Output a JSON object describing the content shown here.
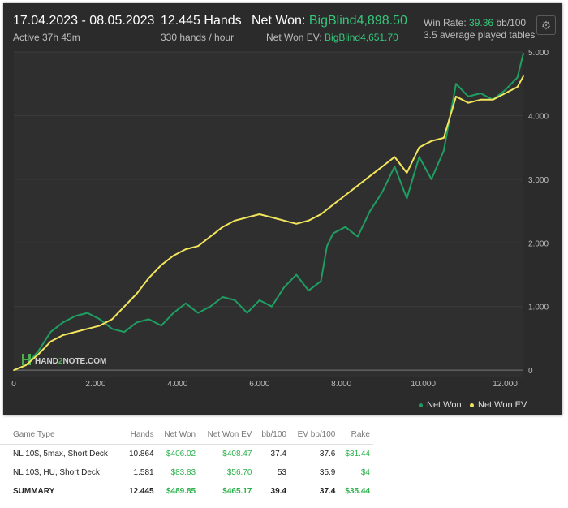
{
  "header": {
    "date_range": "17.04.2023 - 08.05.2023",
    "active": "Active 37h 45m",
    "hands": "12.445 Hands",
    "hands_rate": "330 hands / hour",
    "net_won_label": "Net Won:",
    "net_won_value": "BigBlind4,898.50",
    "net_won_ev_label": "Net Won  EV:",
    "net_won_ev_value": "BigBlind4,651.70",
    "win_rate_label": "Win Rate:",
    "win_rate_value": "39.36",
    "win_rate_unit": "bb/100",
    "avg_tables": "3.5 average played tables",
    "settings_icon": "gear-icon"
  },
  "watermark": {
    "prefix": "HAND",
    "mid": "2",
    "suffix": "NOTE.COM"
  },
  "legend": [
    {
      "label": "Net Won",
      "color": "#1f9e62"
    },
    {
      "label": "Net Won  EV",
      "color": "#f2e55c"
    }
  ],
  "chart_data": {
    "type": "line",
    "xlim": [
      0,
      12445
    ],
    "ylim": [
      -100,
      5000
    ],
    "x_ticks": [
      "0",
      "2.000",
      "4.000",
      "6.000",
      "8.000",
      "10.000",
      "12.000"
    ],
    "y_ticks": [
      "0",
      "1.000",
      "2.000",
      "3.000",
      "4.000",
      "5.000"
    ],
    "series": [
      {
        "name": "Net Won",
        "color": "#1f9e62",
        "x": [
          0,
          300,
          600,
          900,
          1200,
          1500,
          1800,
          2100,
          2400,
          2700,
          3000,
          3300,
          3600,
          3900,
          4200,
          4500,
          4800,
          5100,
          5400,
          5700,
          6000,
          6300,
          6600,
          6900,
          7200,
          7500,
          7650,
          7800,
          8100,
          8400,
          8700,
          9000,
          9300,
          9600,
          9900,
          10200,
          10500,
          10800,
          11100,
          11400,
          11700,
          12000,
          12300,
          12445
        ],
        "y": [
          0,
          80,
          300,
          600,
          750,
          850,
          900,
          800,
          650,
          600,
          750,
          800,
          700,
          900,
          1050,
          900,
          1000,
          1150,
          1100,
          900,
          1100,
          1000,
          1300,
          1500,
          1250,
          1400,
          1950,
          2150,
          2250,
          2100,
          2500,
          2800,
          3200,
          2700,
          3350,
          3000,
          3450,
          4500,
          4300,
          4350,
          4250,
          4400,
          4600,
          4980
        ]
      },
      {
        "name": "Net Won  EV",
        "color": "#f2e55c",
        "x": [
          0,
          300,
          600,
          900,
          1200,
          1500,
          1800,
          2100,
          2400,
          2700,
          3000,
          3300,
          3600,
          3900,
          4200,
          4500,
          4800,
          5100,
          5400,
          5700,
          6000,
          6300,
          6600,
          6900,
          7200,
          7500,
          7800,
          8100,
          8400,
          8700,
          9000,
          9300,
          9600,
          9900,
          10200,
          10500,
          10800,
          11100,
          11400,
          11700,
          12000,
          12300,
          12445
        ],
        "y": [
          0,
          80,
          250,
          450,
          550,
          600,
          650,
          700,
          800,
          1000,
          1200,
          1450,
          1650,
          1800,
          1900,
          1950,
          2100,
          2250,
          2350,
          2400,
          2450,
          2400,
          2350,
          2300,
          2350,
          2450,
          2600,
          2750,
          2900,
          3050,
          3200,
          3350,
          3100,
          3500,
          3600,
          3650,
          4300,
          4200,
          4250,
          4250,
          4350,
          4450,
          4620
        ]
      }
    ]
  },
  "table": {
    "headers": [
      "Game Type",
      "Hands",
      "Net Won",
      "Net Won  EV",
      "bb/100",
      "EV bb/100",
      "Rake"
    ],
    "rows": [
      [
        "NL 10$, 5max, Short Deck",
        "10.864",
        "$406.02",
        "$408.47",
        "37.4",
        "37.6",
        "$31.44"
      ],
      [
        "NL 10$, HU, Short Deck",
        "1.581",
        "$83.83",
        "$56.70",
        "53",
        "35.9",
        "$4"
      ]
    ],
    "summary": [
      "SUMMARY",
      "12.445",
      "$489.85",
      "$465.17",
      "39.4",
      "37.4",
      "$35.44"
    ]
  }
}
